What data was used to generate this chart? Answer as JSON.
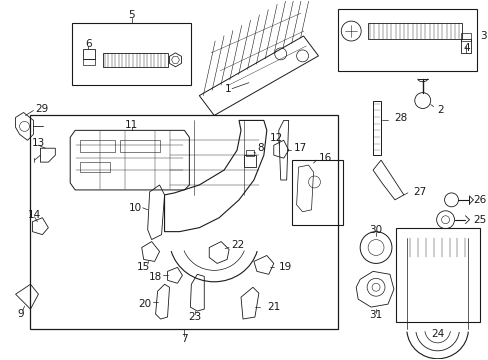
{
  "bg_color": "#ffffff",
  "line_color": "#1a1a1a",
  "font_size": 7.5,
  "fig_width": 4.89,
  "fig_height": 3.6,
  "dpi": 100
}
